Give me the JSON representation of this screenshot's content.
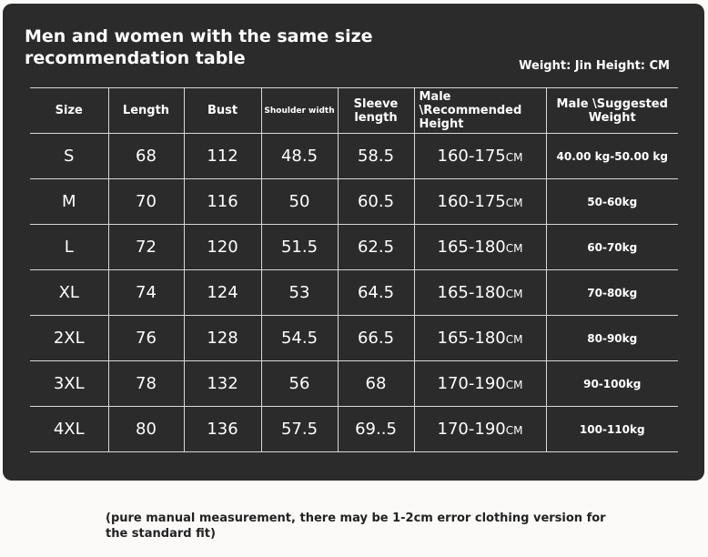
{
  "title": "Men and women with the same size recommendation table",
  "units_note": "Weight: Jin Height: CM",
  "headers": {
    "size": "Size",
    "length": "Length",
    "bust": "Bust",
    "shoulder": "Shoulder width",
    "sleeve": "Sleeve length",
    "height": "Male \\Recommended Height",
    "weight": "Male \\Suggested Weight"
  },
  "height_unit": "CM",
  "rows": [
    {
      "size": "S",
      "length": "68",
      "bust": "112",
      "shoulder": "48.5",
      "sleeve": "58.5",
      "height": "160-175",
      "weight": "40.00 kg-50.00 kg"
    },
    {
      "size": "M",
      "length": "70",
      "bust": "116",
      "shoulder": "50",
      "sleeve": "60.5",
      "height": "160-175",
      "weight": "50-60kg"
    },
    {
      "size": "L",
      "length": "72",
      "bust": "120",
      "shoulder": "51.5",
      "sleeve": "62.5",
      "height": "165-180",
      "weight": "60-70kg"
    },
    {
      "size": "XL",
      "length": "74",
      "bust": "124",
      "shoulder": "53",
      "sleeve": "64.5",
      "height": "165-180",
      "weight": "70-80kg"
    },
    {
      "size": "2XL",
      "length": "76",
      "bust": "128",
      "shoulder": "54.5",
      "sleeve": "66.5",
      "height": "165-180",
      "weight": "80-90kg"
    },
    {
      "size": "3XL",
      "length": "78",
      "bust": "132",
      "shoulder": "56",
      "sleeve": "68",
      "height": "170-190",
      "weight": "90-100kg"
    },
    {
      "size": "4XL",
      "length": "80",
      "bust": "136",
      "shoulder": "57.5",
      "sleeve": "69..5",
      "height": "170-190",
      "weight": "100-110kg"
    }
  ],
  "footnote": "(pure manual measurement, there may be 1-2cm error clothing version for the standard fit)",
  "colors": {
    "panel": "#2b2b2b",
    "page": "#fbfaf9",
    "text_light": "#ffffff",
    "text_dark": "#222222"
  }
}
